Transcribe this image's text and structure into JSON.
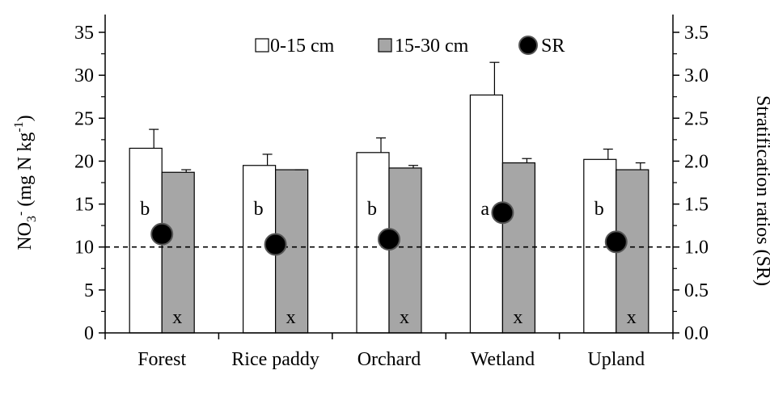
{
  "chart_data": {
    "type": "bar",
    "categories": [
      "Forest",
      "Rice paddy",
      "Orchard",
      "Wetland",
      "Upland"
    ],
    "series": [
      {
        "name": "0-15 cm",
        "values": [
          21.5,
          19.5,
          21.0,
          27.7,
          20.2
        ],
        "errors": [
          2.2,
          1.3,
          1.7,
          3.8,
          1.2
        ],
        "color": "#ffffff",
        "letters": [
          "b",
          "b",
          "b",
          "a",
          "b"
        ]
      },
      {
        "name": "15-30 cm",
        "values": [
          18.7,
          19.0,
          19.2,
          19.8,
          19.0
        ],
        "errors": [
          0.3,
          0.0,
          0.3,
          0.5,
          0.8
        ],
        "color": "#a6a6a6",
        "letters": [
          "x",
          "x",
          "x",
          "x",
          "x"
        ]
      }
    ],
    "sr": {
      "name": "SR",
      "values": [
        1.15,
        1.03,
        1.09,
        1.4,
        1.06
      ],
      "color": "#000000"
    },
    "reference_line": {
      "axis": "right",
      "value": 1.0,
      "style": "dashed"
    },
    "ylabel_left": {
      "text": "NO",
      "sub": "3",
      "sup": "-",
      "unit": "(mg N kg",
      "unit_sup": "-1",
      "unit_close": ")"
    },
    "ylabel_right": "Stratification ratios (SR)",
    "ylim_left": [
      0,
      37
    ],
    "ylim_right": [
      0,
      3.7
    ],
    "yticks_left": [
      "0",
      "5",
      "10",
      "15",
      "20",
      "25",
      "30",
      "35"
    ],
    "yticks_right": [
      "0.0",
      "0.5",
      "1.0",
      "1.5",
      "2.0",
      "2.5",
      "3.0",
      "3.5"
    ],
    "legend": {
      "position": "top",
      "items": [
        "0-15 cm",
        "15-30 cm",
        "SR"
      ]
    },
    "grid": false
  }
}
